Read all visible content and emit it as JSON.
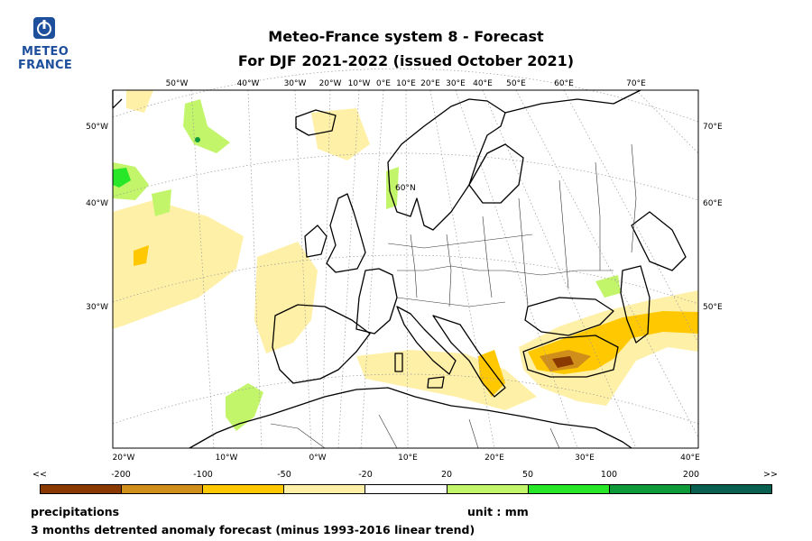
{
  "logo": {
    "line1": "METEO",
    "line2": "FRANCE",
    "color": "#1d4f9c"
  },
  "title": {
    "line1": "Meteo-France system 8  -  Forecast",
    "line2": "For DJF 2021-2022      (issued October 2021)"
  },
  "map": {
    "top_lon_labels": [
      "50°W",
      "40°W",
      "30°W",
      "20°W",
      "10°W",
      "0°E",
      "10°E",
      "20°E",
      "30°E",
      "40°E",
      "50°E",
      "60°E",
      "70°E"
    ],
    "bottom_lon_labels": [
      "20°W",
      "10°W",
      "0°W",
      "10°E",
      "20°E",
      "30°E",
      "40°E"
    ],
    "left_lat_labels": [
      "50°W",
      "40°W",
      "30°W"
    ],
    "right_lat_labels": [
      "70°E",
      "60°E",
      "50°E"
    ],
    "inner_label": "60°N"
  },
  "legend": {
    "ticks": [
      "<<",
      "-200",
      "-100",
      "-50",
      "-20",
      "20",
      "50",
      "100",
      "200",
      ">>"
    ],
    "colors": [
      "#8a3a00",
      "#d08e1a",
      "#ffc800",
      "#fff0a8",
      "#ffffff",
      "#c2f56a",
      "#28e628",
      "#0f9a3a",
      "#0a6050"
    ]
  },
  "footer": {
    "variable": "precipitations",
    "unit": "unit : mm",
    "description": "3 months detrented anomaly forecast (minus 1993-2016 linear trend)"
  }
}
